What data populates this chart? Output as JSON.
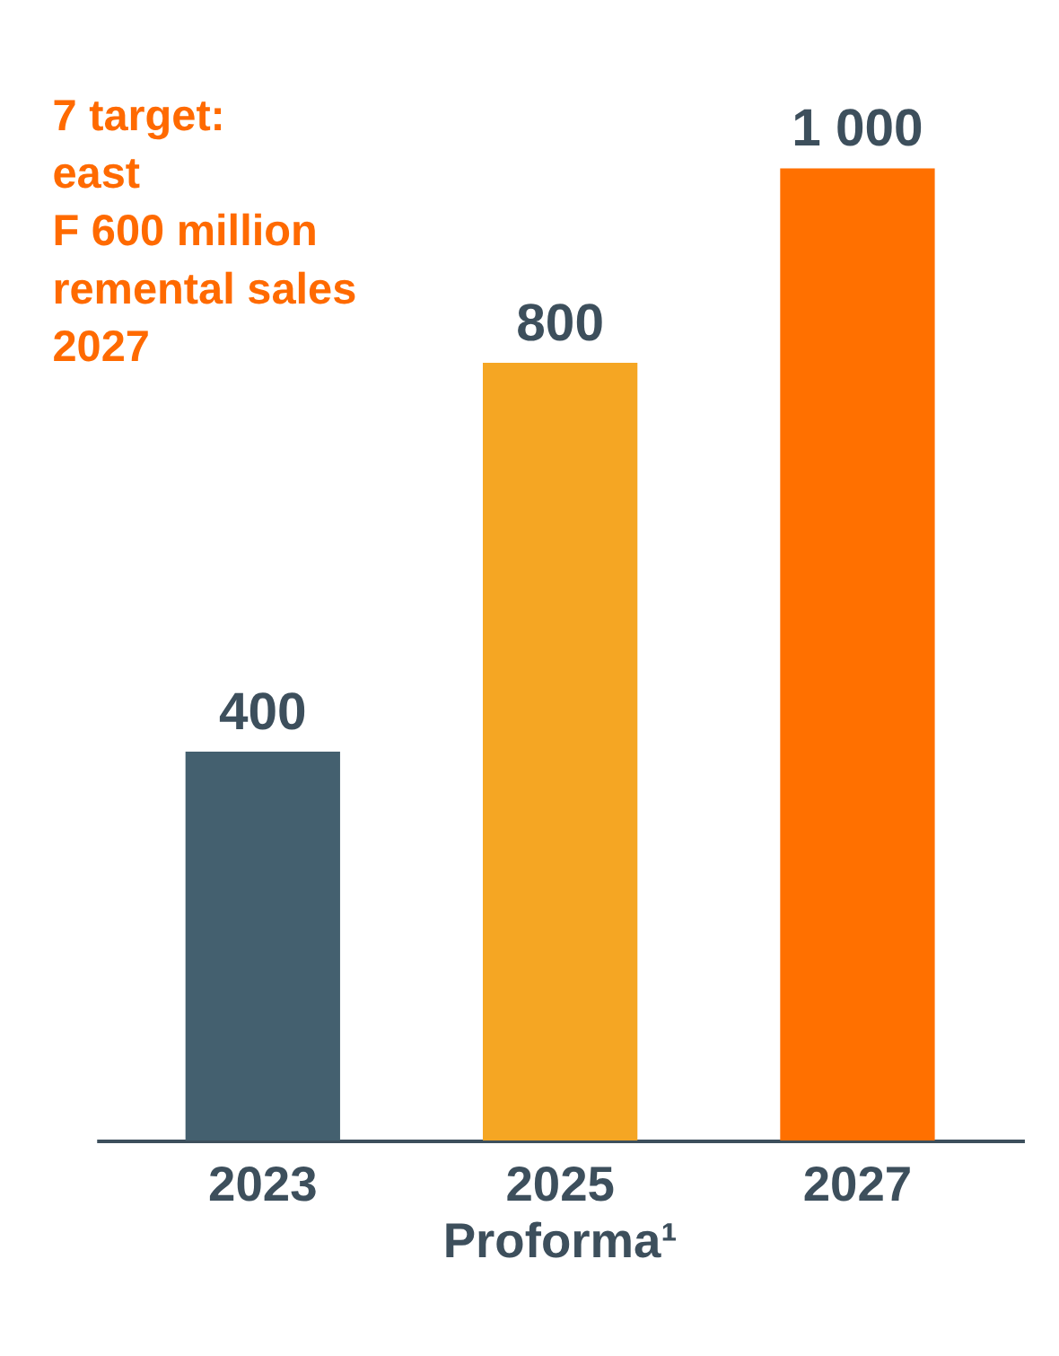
{
  "chart_data": {
    "type": "bar",
    "categories": [
      "2023",
      "2025\nProforma¹",
      "2027"
    ],
    "values": [
      400,
      800,
      1000
    ],
    "colors": [
      "#44606f",
      "#f5a623",
      "#ff7000"
    ],
    "data_labels": true,
    "value_labels": [
      "400",
      "800",
      "1 000"
    ],
    "annotations": [
      "7 target:\neast\nF 600 million\nremental sales\n2027"
    ],
    "grid": false,
    "legend": false
  }
}
